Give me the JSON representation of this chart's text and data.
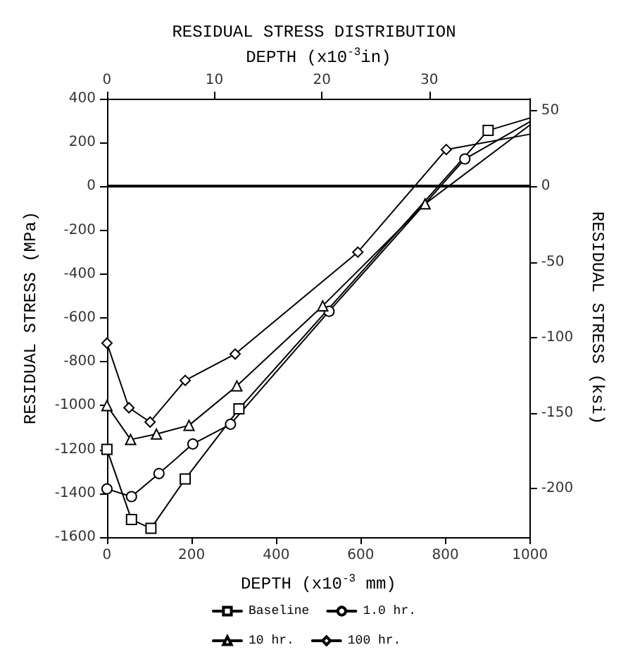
{
  "chart_data": {
    "type": "line",
    "title": "RESIDUAL STRESS DISTRIBUTION",
    "xlabel": "DEPTH (x10$^{-3}$ mm)",
    "ylabel": "RESIDUAL STRESS (MPa)",
    "y2label": "RESIDUAL STRESS (ksi)",
    "x2label": "DEPTH (x10$^{-3}$in)",
    "xlim": [
      0,
      1000
    ],
    "xticks": [
      0,
      200,
      400,
      600,
      800,
      1000
    ],
    "ylim": [
      -1600,
      400
    ],
    "yticks": [
      -1600,
      -1400,
      -1200,
      -1000,
      -800,
      -600,
      -400,
      -200,
      0,
      200,
      400
    ],
    "y2lim": [
      -232.06,
      58.01
    ],
    "y2ticks": [
      -200,
      -150,
      -100,
      -50,
      0,
      50
    ],
    "x2lim": [
      0,
      39.37
    ],
    "x2ticks": [
      0,
      10,
      20,
      30
    ],
    "series": [
      {
        "name": "Baseline",
        "color": "#000000",
        "marker": "square",
        "x": [
          0,
          58,
          104,
          185,
          312,
          901,
          1000
        ],
        "values": [
          -1200,
          -1520,
          -1560,
          -1335,
          -1015,
          255,
          312
        ]
      },
      {
        "name": "1.0 hr.",
        "color": "#000000",
        "marker": "circle",
        "x": [
          0,
          58,
          123,
          203,
          292,
          525,
          846,
          1000
        ],
        "values": [
          -1380,
          -1415,
          -1310,
          -1175,
          -1085,
          -570,
          125,
          295
        ]
      },
      {
        "name": "10 hr.",
        "color": "#000000",
        "marker": "triangle",
        "x": [
          0,
          56,
          117,
          194,
          307,
          510,
          752,
          1000
        ],
        "values": [
          -1000,
          -1155,
          -1130,
          -1090,
          -910,
          -545,
          -80,
          280
        ]
      },
      {
        "name": "100 hr.",
        "color": "#000000",
        "marker": "diamond",
        "x": [
          0,
          52,
          102,
          185,
          303,
          593,
          802,
          1000
        ],
        "values": [
          -715,
          -1010,
          -1075,
          -885,
          -765,
          -300,
          168,
          238
        ]
      }
    ],
    "ref_lines": [
      {
        "axis": "y",
        "value": 0,
        "color": "#000000"
      }
    ],
    "grid": false,
    "legend": "bottom",
    "line_style": "solid"
  }
}
